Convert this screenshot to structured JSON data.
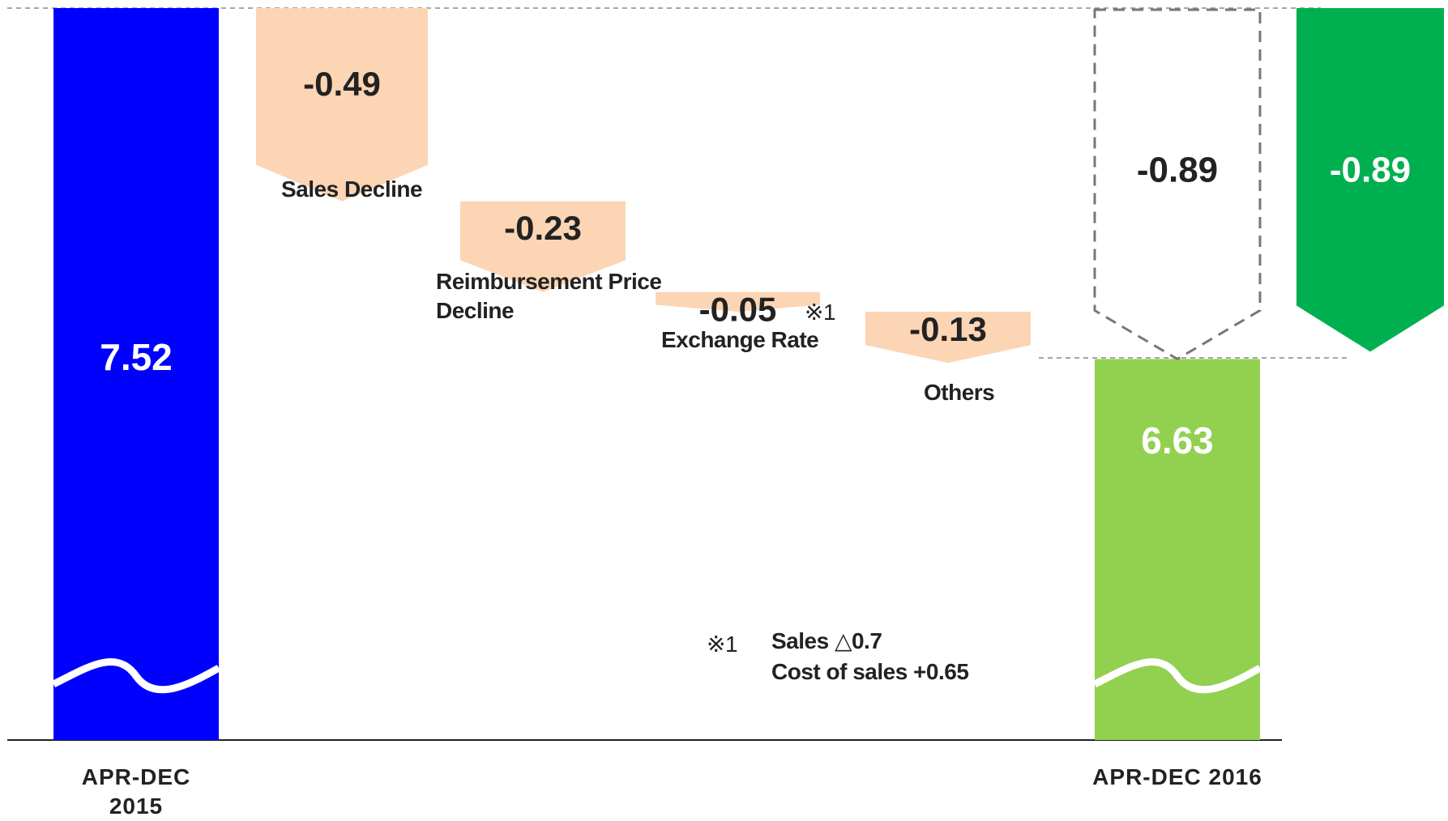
{
  "chart_data": {
    "type": "waterfall",
    "categories": [
      "APR-DEC 2015",
      "Sales Decline",
      "Reimbursement Price Decline",
      "Exchange Rate",
      "Others",
      "APR-DEC 2016"
    ],
    "values": [
      7.52,
      -0.49,
      -0.23,
      -0.05,
      -0.13,
      6.63
    ],
    "total_change": -0.89,
    "colors": {
      "start": "#0000ff",
      "step": "#fcd5b4",
      "end": "#92d050",
      "change": "#00b050"
    },
    "annotations": {
      "marker": "※1",
      "footnote_marker": "※1",
      "footnote": [
        "Sales △0.7",
        "Cost of sales +0.65"
      ]
    }
  }
}
